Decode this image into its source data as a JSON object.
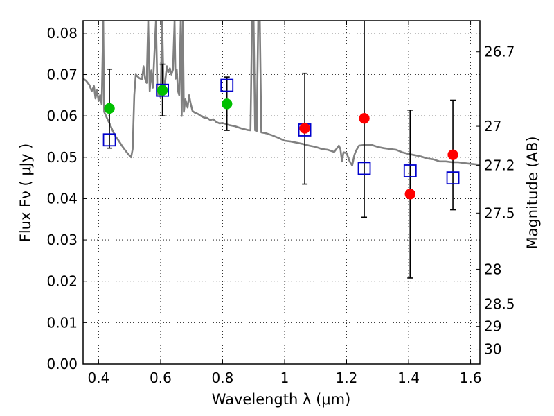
{
  "chart_data": {
    "type": "scatter",
    "xlabel": "Wavelength  λ (μm)",
    "ylabel": "Flux  Fν  ( μJy )",
    "y2label": "Magnitude (AB)",
    "xlim": [
      0.35,
      1.63
    ],
    "ylim": [
      0.0,
      0.083
    ],
    "grid": true,
    "x_ticks": [
      0.4,
      0.6,
      0.8,
      1.0,
      1.2,
      1.4,
      1.6
    ],
    "x_tick_labels": [
      "0.4",
      "0.6",
      "0.8",
      "1",
      "1.2",
      "1.4",
      "1.6"
    ],
    "y_ticks": [
      0.0,
      0.01,
      0.02,
      0.03,
      0.04,
      0.05,
      0.06,
      0.07,
      0.08
    ],
    "y_tick_labels": [
      "0.00",
      "0.01",
      "0.02",
      "0.03",
      "0.04",
      "0.05",
      "0.06",
      "0.07",
      "0.08"
    ],
    "y2_ticks": [
      {
        "label": "26.7",
        "flux": 0.0755
      },
      {
        "label": "27",
        "flux": 0.0575
      },
      {
        "label": "27.2",
        "flux": 0.048
      },
      {
        "label": "27.5",
        "flux": 0.0365
      },
      {
        "label": "28",
        "flux": 0.0229
      },
      {
        "label": "28.5",
        "flux": 0.0145
      },
      {
        "label": "29",
        "flux": 0.0091
      },
      {
        "label": "30",
        "flux": 0.0036
      }
    ],
    "observed_points": [
      {
        "x": 0.435,
        "y": 0.0618,
        "err_low": 0.0522,
        "err_high": 0.0713,
        "color": "#00c000"
      },
      {
        "x": 0.606,
        "y": 0.0662,
        "err_low": 0.06,
        "err_high": 0.0725,
        "color": "#00c000"
      },
      {
        "x": 0.814,
        "y": 0.0629,
        "err_low": 0.0565,
        "err_high": 0.0694,
        "color": "#00c000"
      },
      {
        "x": 1.065,
        "y": 0.057,
        "err_low": 0.0435,
        "err_high": 0.0703,
        "color": "#ff0000"
      },
      {
        "x": 1.257,
        "y": 0.0594,
        "err_low": 0.0355,
        "err_high": 0.084,
        "color": "#ff0000"
      },
      {
        "x": 1.405,
        "y": 0.0411,
        "err_low": 0.0208,
        "err_high": 0.0614,
        "color": "#ff0000"
      },
      {
        "x": 1.543,
        "y": 0.0506,
        "err_low": 0.0373,
        "err_high": 0.0638,
        "color": "#ff0000"
      }
    ],
    "model_points": [
      {
        "x": 0.435,
        "y": 0.0542
      },
      {
        "x": 0.606,
        "y": 0.0662
      },
      {
        "x": 0.814,
        "y": 0.0674
      },
      {
        "x": 1.065,
        "y": 0.0566
      },
      {
        "x": 1.257,
        "y": 0.0473
      },
      {
        "x": 1.405,
        "y": 0.0467
      },
      {
        "x": 1.543,
        "y": 0.045
      }
    ],
    "model_marker_color": "#0000cc",
    "spectrum_color": "#808080",
    "spectrum": [
      [
        0.35,
        0.069
      ],
      [
        0.36,
        0.0685
      ],
      [
        0.37,
        0.0675
      ],
      [
        0.378,
        0.066
      ],
      [
        0.385,
        0.0672
      ],
      [
        0.39,
        0.0642
      ],
      [
        0.395,
        0.0662
      ],
      [
        0.4,
        0.0636
      ],
      [
        0.405,
        0.065
      ],
      [
        0.41,
        0.0628
      ],
      [
        0.415,
        0.083
      ],
      [
        0.418,
        0.061
      ],
      [
        0.425,
        0.0598
      ],
      [
        0.435,
        0.0582
      ],
      [
        0.445,
        0.0565
      ],
      [
        0.455,
        0.055
      ],
      [
        0.465,
        0.054
      ],
      [
        0.475,
        0.0528
      ],
      [
        0.485,
        0.0518
      ],
      [
        0.495,
        0.0508
      ],
      [
        0.505,
        0.05
      ],
      [
        0.51,
        0.052
      ],
      [
        0.515,
        0.065
      ],
      [
        0.52,
        0.07
      ],
      [
        0.53,
        0.0692
      ],
      [
        0.54,
        0.0688
      ],
      [
        0.545,
        0.072
      ],
      [
        0.55,
        0.069
      ],
      [
        0.555,
        0.068
      ],
      [
        0.56,
        0.083
      ],
      [
        0.565,
        0.066
      ],
      [
        0.57,
        0.071
      ],
      [
        0.575,
        0.0668
      ],
      [
        0.585,
        0.083
      ],
      [
        0.59,
        0.065
      ],
      [
        0.595,
        0.0662
      ],
      [
        0.6,
        0.0645
      ],
      [
        0.605,
        0.083
      ],
      [
        0.61,
        0.065
      ],
      [
        0.62,
        0.072
      ],
      [
        0.625,
        0.0705
      ],
      [
        0.63,
        0.0715
      ],
      [
        0.635,
        0.07
      ],
      [
        0.64,
        0.0712
      ],
      [
        0.645,
        0.083
      ],
      [
        0.648,
        0.069
      ],
      [
        0.652,
        0.0712
      ],
      [
        0.656,
        0.066
      ],
      [
        0.66,
        0.065
      ],
      [
        0.665,
        0.083
      ],
      [
        0.668,
        0.06
      ],
      [
        0.672,
        0.083
      ],
      [
        0.675,
        0.061
      ],
      [
        0.68,
        0.064
      ],
      [
        0.687,
        0.062
      ],
      [
        0.692,
        0.065
      ],
      [
        0.697,
        0.063
      ],
      [
        0.703,
        0.0612
      ],
      [
        0.71,
        0.0608
      ],
      [
        0.72,
        0.0605
      ],
      [
        0.73,
        0.06
      ],
      [
        0.74,
        0.0596
      ],
      [
        0.75,
        0.0595
      ],
      [
        0.76,
        0.059
      ],
      [
        0.77,
        0.0592
      ],
      [
        0.78,
        0.0585
      ],
      [
        0.79,
        0.0582
      ],
      [
        0.8,
        0.0583
      ],
      [
        0.82,
        0.0578
      ],
      [
        0.84,
        0.0575
      ],
      [
        0.86,
        0.057
      ],
      [
        0.88,
        0.0566
      ],
      [
        0.89,
        0.0565
      ],
      [
        0.895,
        0.083
      ],
      [
        0.9,
        0.083
      ],
      [
        0.905,
        0.0565
      ],
      [
        0.91,
        0.0563
      ],
      [
        0.915,
        0.083
      ],
      [
        0.92,
        0.083
      ],
      [
        0.925,
        0.056
      ],
      [
        0.94,
        0.0558
      ],
      [
        0.96,
        0.0553
      ],
      [
        0.98,
        0.0547
      ],
      [
        1.0,
        0.054
      ],
      [
        1.02,
        0.0538
      ],
      [
        1.04,
        0.0535
      ],
      [
        1.06,
        0.0532
      ],
      [
        1.08,
        0.0528
      ],
      [
        1.1,
        0.0525
      ],
      [
        1.12,
        0.052
      ],
      [
        1.14,
        0.0518
      ],
      [
        1.16,
        0.0513
      ],
      [
        1.175,
        0.0528
      ],
      [
        1.18,
        0.052
      ],
      [
        1.185,
        0.049
      ],
      [
        1.19,
        0.0512
      ],
      [
        1.2,
        0.051
      ],
      [
        1.21,
        0.049
      ],
      [
        1.218,
        0.048
      ],
      [
        1.225,
        0.0505
      ],
      [
        1.23,
        0.0515
      ],
      [
        1.24,
        0.0528
      ],
      [
        1.26,
        0.053
      ],
      [
        1.28,
        0.053
      ],
      [
        1.3,
        0.0525
      ],
      [
        1.32,
        0.0522
      ],
      [
        1.34,
        0.052
      ],
      [
        1.36,
        0.0518
      ],
      [
        1.38,
        0.0512
      ],
      [
        1.4,
        0.0508
      ],
      [
        1.42,
        0.0505
      ],
      [
        1.44,
        0.0502
      ],
      [
        1.46,
        0.0497
      ],
      [
        1.48,
        0.0495
      ],
      [
        1.5,
        0.049
      ],
      [
        1.52,
        0.049
      ],
      [
        1.54,
        0.0488
      ],
      [
        1.56,
        0.0488
      ],
      [
        1.58,
        0.0486
      ],
      [
        1.6,
        0.0484
      ],
      [
        1.63,
        0.0482
      ]
    ]
  }
}
